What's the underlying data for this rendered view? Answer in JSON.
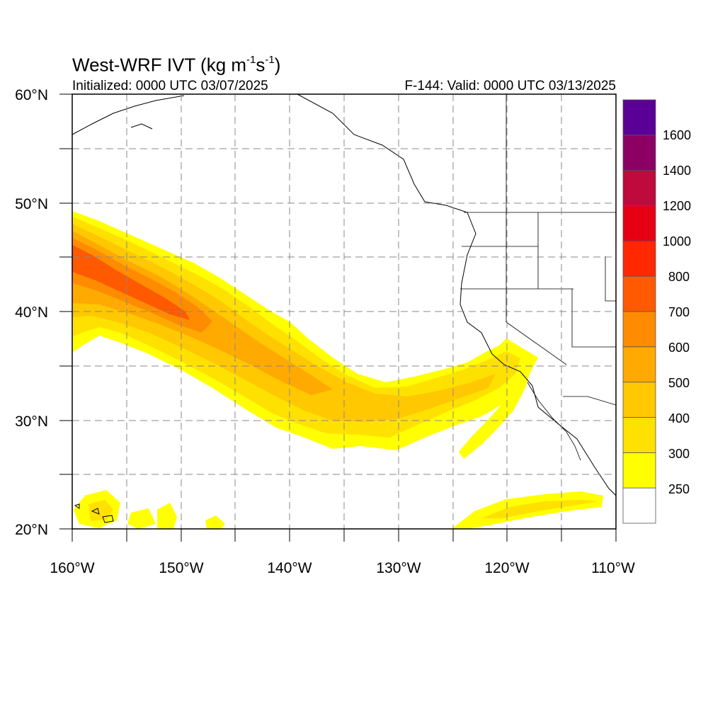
{
  "title": {
    "prefix": "West-WRF IVT (kg m",
    "sup1": "-1",
    "mid": "s",
    "sup2": "-1",
    "suffix": ")"
  },
  "initialized": "Initialized: 0000 UTC 03/07/2025",
  "valid": "F-144: Valid: 0000 UTC 03/13/2025",
  "map": {
    "lon_range": [
      -160,
      -110
    ],
    "lat_range": [
      20,
      60
    ],
    "lon_labels": [
      {
        "lon": -160,
        "label": "160°W"
      },
      {
        "lon": -150,
        "label": "150°W"
      },
      {
        "lon": -140,
        "label": "140°W"
      },
      {
        "lon": -130,
        "label": "130°W"
      },
      {
        "lon": -120,
        "label": "120°W"
      },
      {
        "lon": -110,
        "label": "110°W"
      }
    ],
    "lat_labels": [
      {
        "lat": 20,
        "label": "20°N"
      },
      {
        "lat": 30,
        "label": "30°N"
      },
      {
        "lat": 40,
        "label": "40°N"
      },
      {
        "lat": 50,
        "label": "50°N"
      },
      {
        "lat": 60,
        "label": "60°N"
      }
    ],
    "grid_lons": [
      -155,
      -150,
      -145,
      -140,
      -135,
      -130,
      -125,
      -120,
      -115
    ],
    "grid_lats": [
      25,
      30,
      35,
      40,
      45,
      50,
      55
    ],
    "grid_style": "dashed gray"
  },
  "colorbar": {
    "levels": [
      "250",
      "300",
      "400",
      "500",
      "600",
      "700",
      "800",
      "1000",
      "1200",
      "1400",
      "1600"
    ],
    "colors": [
      "#ffffff",
      "#ffff00",
      "#ffe100",
      "#ffc800",
      "#ffaa00",
      "#ff8c00",
      "#ff5a00",
      "#ff2800",
      "#e60014",
      "#be0a3c",
      "#8c0064",
      "#5a0096"
    ]
  }
}
